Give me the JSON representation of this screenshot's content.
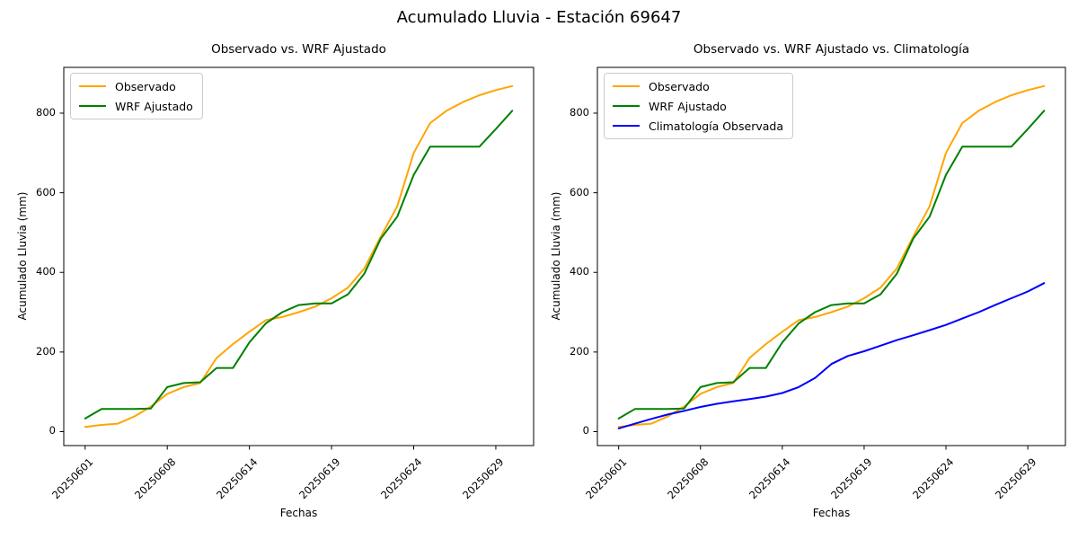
{
  "suptitle": "Acumulado Lluvia - Estación 69647",
  "chart_data": [
    {
      "type": "line",
      "title": "Observado vs. WRF Ajustado",
      "xlabel": "Fechas",
      "ylabel": "Acumulado Lluvia (mm)",
      "grid": false,
      "legend_position": "upper left",
      "n_points": 27,
      "x_tick_indices": [
        0,
        5,
        10,
        15,
        20,
        25
      ],
      "x_tick_labels": [
        "20250601",
        "20250608",
        "20250614",
        "20250619",
        "20250624",
        "20250629"
      ],
      "y_ticks": [
        0,
        200,
        400,
        600,
        800
      ],
      "xlim": [
        -1.3,
        27.3
      ],
      "ylim": [
        -35,
        915
      ],
      "series": [
        {
          "name": "Observado",
          "color": "#FFA500",
          "values": [
            12,
            17,
            20,
            38,
            63,
            95,
            112,
            122,
            185,
            220,
            251,
            280,
            288,
            300,
            314,
            335,
            362,
            410,
            490,
            566,
            700,
            775,
            806,
            828,
            845,
            858,
            868
          ]
        },
        {
          "name": "WRF Ajustado",
          "color": "#008000",
          "values": [
            33,
            57,
            57,
            57,
            58,
            112,
            122,
            124,
            160,
            160,
            224,
            272,
            300,
            318,
            322,
            322,
            345,
            397,
            485,
            540,
            645,
            716,
            716,
            716,
            716,
            760,
            806
          ]
        }
      ]
    },
    {
      "type": "line",
      "title": "Observado vs. WRF Ajustado vs. Climatología",
      "xlabel": "Fechas",
      "ylabel": "Acumulado Lluvia (mm)",
      "grid": false,
      "legend_position": "upper left",
      "n_points": 27,
      "x_tick_indices": [
        0,
        5,
        10,
        15,
        20,
        25
      ],
      "x_tick_labels": [
        "20250601",
        "20250608",
        "20250614",
        "20250619",
        "20250624",
        "20250629"
      ],
      "y_ticks": [
        0,
        200,
        400,
        600,
        800
      ],
      "xlim": [
        -1.3,
        27.3
      ],
      "ylim": [
        -35,
        915
      ],
      "series": [
        {
          "name": "Observado",
          "color": "#FFA500",
          "values": [
            12,
            17,
            20,
            38,
            63,
            95,
            112,
            122,
            185,
            220,
            251,
            280,
            288,
            300,
            314,
            335,
            362,
            410,
            490,
            566,
            700,
            775,
            806,
            828,
            845,
            858,
            868
          ]
        },
        {
          "name": "WRF Ajustado",
          "color": "#008000",
          "values": [
            33,
            57,
            57,
            57,
            58,
            112,
            122,
            124,
            160,
            160,
            224,
            272,
            300,
            318,
            322,
            322,
            345,
            397,
            485,
            540,
            645,
            716,
            716,
            716,
            716,
            760,
            806
          ]
        },
        {
          "name": "Climatología Observada",
          "color": "#0000FF",
          "values": [
            8,
            20,
            32,
            43,
            52,
            62,
            70,
            76,
            82,
            88,
            97,
            112,
            135,
            170,
            190,
            202,
            216,
            230,
            242,
            255,
            268,
            284,
            300,
            318,
            335,
            352,
            373
          ]
        }
      ]
    }
  ]
}
